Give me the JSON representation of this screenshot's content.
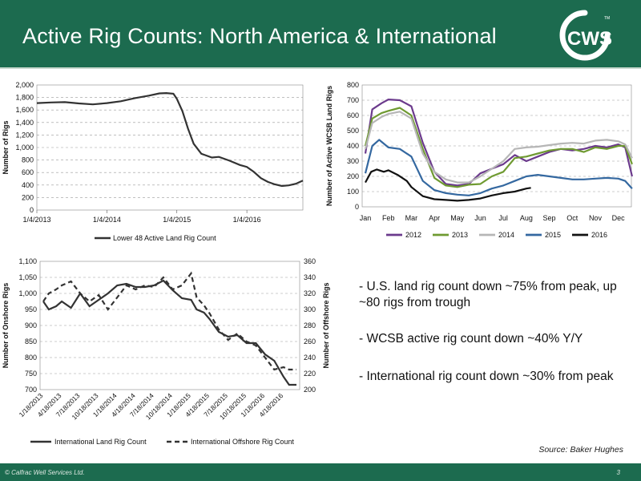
{
  "header": {
    "title": "Active Rig Counts: North America & International"
  },
  "logo": {
    "text": "CWS",
    "tm": "TM"
  },
  "bullets": [
    "- U.S. land rig count down ~75% from peak, up ~80 rigs from trough",
    "- WCSB active rig count down ~40% Y/Y",
    "- International rig count down ~30% from peak"
  ],
  "source": "Source: Baker Hughes",
  "footer": {
    "copyright": "© Calfrac Well Services Ltd.",
    "page": "3"
  },
  "colors": {
    "header_green": "#1c6b4f",
    "s2012": "#6b3a8c",
    "s2013": "#6f9a31",
    "s2014": "#b6b6b6",
    "s2015": "#3468a0",
    "s2016": "#111111"
  },
  "chart_data": [
    {
      "type": "line",
      "title": "",
      "xlabel": "",
      "ylabel": "Number of Rigs",
      "ylim": [
        0,
        2000
      ],
      "yticks": [
        0,
        200,
        400,
        600,
        800,
        1000,
        1200,
        1400,
        1600,
        1800,
        2000
      ],
      "ytick_labels": [
        "0",
        "200",
        "400",
        "600",
        "800",
        "1,000",
        "1,200",
        "1,400",
        "1,600",
        "1,800",
        "2,000"
      ],
      "xticks": [
        "1/4/2013",
        "1/4/2014",
        "1/4/2015",
        "1/4/2016"
      ],
      "xlim_years": [
        2013.0,
        2016.8
      ],
      "legend": "bottom",
      "grid": "horizontal-dashed",
      "series": [
        {
          "name": "Lower 48 Active Land Rig Count",
          "color": "#333333",
          "dash": "",
          "x": [
            2013.0,
            2013.2,
            2013.4,
            2013.6,
            2013.8,
            2014.0,
            2014.2,
            2014.4,
            2014.6,
            2014.75,
            2014.85,
            2014.95,
            2015.0,
            2015.08,
            2015.16,
            2015.24,
            2015.35,
            2015.5,
            2015.6,
            2015.75,
            2015.9,
            2016.0,
            2016.1,
            2016.2,
            2016.3,
            2016.4,
            2016.5,
            2016.6,
            2016.7,
            2016.8
          ],
          "y": [
            1710,
            1720,
            1725,
            1705,
            1690,
            1710,
            1740,
            1790,
            1830,
            1865,
            1870,
            1860,
            1780,
            1580,
            1300,
            1060,
            900,
            840,
            850,
            790,
            720,
            690,
            610,
            510,
            450,
            410,
            385,
            395,
            420,
            470
          ]
        }
      ]
    },
    {
      "type": "line",
      "title": "",
      "xlabel": "",
      "ylabel": "Number of Active WCSB Land Rigs",
      "ylim": [
        0,
        800
      ],
      "yticks": [
        0,
        100,
        200,
        300,
        400,
        500,
        600,
        700,
        800
      ],
      "categories": [
        "Jan",
        "Feb",
        "Mar",
        "Apr",
        "May",
        "Jun",
        "Jul",
        "Aug",
        "Sep",
        "Oct",
        "Nov",
        "Dec"
      ],
      "legend": "bottom",
      "grid": "horizontal-dashed",
      "series": [
        {
          "name": "2012",
          "color": "#6b3a8c",
          "x": [
            0.0,
            0.3,
            0.7,
            1.0,
            1.5,
            2.0,
            2.5,
            3.0,
            3.5,
            4.0,
            4.5,
            5.0,
            5.5,
            6.0,
            6.5,
            7.0,
            7.5,
            8.0,
            8.5,
            9.0,
            9.5,
            10.0,
            10.5,
            11.0,
            11.3,
            11.6
          ],
          "y": [
            350,
            640,
            680,
            705,
            700,
            660,
            420,
            230,
            150,
            140,
            150,
            220,
            250,
            280,
            340,
            300,
            330,
            360,
            380,
            370,
            380,
            400,
            390,
            410,
            390,
            200
          ]
        },
        {
          "name": "2013",
          "color": "#6f9a31",
          "x": [
            0.0,
            0.3,
            0.7,
            1.0,
            1.5,
            2.0,
            2.5,
            3.0,
            3.5,
            4.0,
            4.5,
            5.0,
            5.5,
            6.0,
            6.5,
            7.0,
            7.5,
            8.0,
            8.5,
            9.0,
            9.5,
            10.0,
            10.5,
            11.0,
            11.3,
            11.6
          ],
          "y": [
            400,
            580,
            615,
            630,
            650,
            600,
            380,
            190,
            140,
            130,
            145,
            150,
            200,
            230,
            320,
            330,
            350,
            370,
            380,
            380,
            360,
            390,
            380,
            400,
            400,
            280
          ]
        },
        {
          "name": "2014",
          "color": "#b6b6b6",
          "x": [
            0.0,
            0.3,
            0.7,
            1.0,
            1.5,
            2.0,
            2.5,
            3.0,
            3.5,
            4.0,
            4.5,
            5.0,
            5.5,
            6.0,
            6.5,
            7.0,
            7.5,
            8.0,
            8.5,
            9.0,
            9.5,
            10.0,
            10.5,
            11.0,
            11.3,
            11.6
          ],
          "y": [
            380,
            550,
            590,
            610,
            625,
            580,
            350,
            230,
            180,
            160,
            160,
            200,
            250,
            300,
            380,
            390,
            395,
            405,
            415,
            420,
            415,
            435,
            440,
            430,
            410,
            320
          ]
        },
        {
          "name": "2015",
          "color": "#3468a0",
          "x": [
            0.0,
            0.3,
            0.6,
            1.0,
            1.5,
            2.0,
            2.5,
            3.0,
            3.5,
            4.0,
            4.5,
            5.0,
            5.5,
            6.0,
            6.5,
            7.0,
            7.5,
            8.0,
            8.5,
            9.0,
            9.5,
            10.0,
            10.5,
            11.0,
            11.3,
            11.6
          ],
          "y": [
            220,
            400,
            440,
            390,
            380,
            330,
            170,
            110,
            90,
            80,
            75,
            90,
            120,
            140,
            170,
            200,
            210,
            200,
            190,
            180,
            180,
            185,
            190,
            185,
            170,
            120
          ]
        },
        {
          "name": "2016",
          "color": "#111111",
          "x": [
            0.0,
            0.25,
            0.5,
            0.8,
            1.0,
            1.4,
            1.8,
            2.0,
            2.5,
            3.0,
            3.5,
            4.0,
            4.5,
            5.0,
            5.5,
            6.0,
            6.5,
            7.0,
            7.2
          ],
          "y": [
            160,
            230,
            245,
            230,
            240,
            210,
            170,
            130,
            70,
            50,
            45,
            40,
            45,
            55,
            75,
            90,
            100,
            120,
            125
          ]
        }
      ]
    },
    {
      "type": "line",
      "title": "",
      "xlabel": "",
      "ylabel": "Number of Onshore Rigs",
      "ylabel_right": "Number of Offshore Rigs",
      "ylim": [
        700,
        1100
      ],
      "yticks": [
        700,
        750,
        800,
        850,
        900,
        950,
        1000,
        1050,
        1100
      ],
      "ytick_labels": [
        "700",
        "750",
        "800",
        "850",
        "900",
        "950",
        "1,000",
        "1,050",
        "1,100"
      ],
      "ylim_right": [
        200,
        360
      ],
      "yticks_right": [
        200,
        220,
        240,
        260,
        280,
        300,
        320,
        340,
        360
      ],
      "xticks": [
        "1/18/2013",
        "4/18/2013",
        "7/18/2013",
        "10/18/2013",
        "1/18/2014",
        "4/18/2014",
        "7/18/2014",
        "10/18/2014",
        "1/18/2015",
        "4/18/2015",
        "7/18/2015",
        "10/18/2015",
        "1/18/2016",
        "4/18/2016"
      ],
      "legend": "bottom",
      "grid": "horizontal-dashed",
      "series": [
        {
          "name": "International Land Rig Count",
          "color": "#333333",
          "dash": "",
          "axis": "left",
          "x": [
            0,
            0.3,
            0.7,
            1.0,
            1.5,
            2.0,
            2.5,
            3.0,
            3.5,
            4.0,
            4.5,
            5.0,
            5.5,
            6.0,
            6.5,
            7.0,
            7.5,
            8.0,
            8.3,
            8.7,
            9.0,
            9.5,
            10.0,
            10.5,
            11.0,
            11.5,
            12.0,
            12.5,
            13.0,
            13.3,
            13.7
          ],
          "y": [
            975,
            950,
            960,
            975,
            955,
            1000,
            960,
            980,
            1000,
            1025,
            1030,
            1020,
            1020,
            1025,
            1040,
            1010,
            985,
            980,
            950,
            940,
            920,
            880,
            865,
            870,
            845,
            845,
            810,
            790,
            740,
            715,
            715
          ]
        },
        {
          "name": "International Offshore Rig Count",
          "color": "#333333",
          "dash": "6,4",
          "axis": "right",
          "x": [
            0,
            0.3,
            0.7,
            1.0,
            1.5,
            2.0,
            2.5,
            3.0,
            3.5,
            4.0,
            4.5,
            5.0,
            5.5,
            6.0,
            6.5,
            7.0,
            7.5,
            8.0,
            8.3,
            8.7,
            9.0,
            9.5,
            10.0,
            10.5,
            11.0,
            11.5,
            12.0,
            12.5,
            13.0,
            13.3,
            13.7
          ],
          "y": [
            310,
            320,
            325,
            330,
            335,
            320,
            310,
            318,
            300,
            315,
            330,
            325,
            330,
            328,
            340,
            325,
            330,
            345,
            315,
            305,
            295,
            275,
            262,
            270,
            260,
            255,
            240,
            225,
            228,
            225,
            225
          ]
        }
      ]
    }
  ]
}
